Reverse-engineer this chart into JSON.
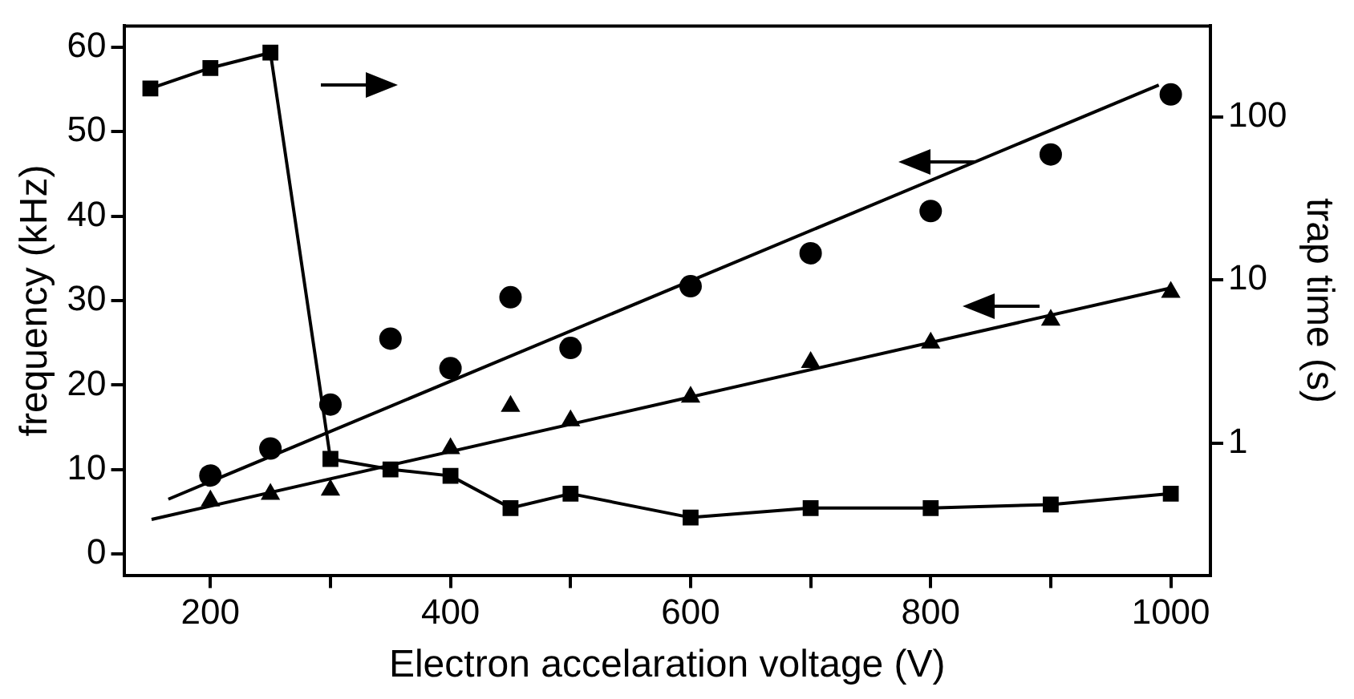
{
  "chart_data": {
    "type": "line",
    "xlabel": "Electron accelaration voltage (V)",
    "ylabel": "frequency (kHz)",
    "y2label": "trap time (s)",
    "x": [
      150,
      200,
      250,
      300,
      350,
      400,
      450,
      500,
      600,
      700,
      800,
      900,
      1000
    ],
    "xlim": [
      128,
      1033
    ],
    "xticks": [
      200,
      {
        "value": 300,
        "label": null
      },
      400,
      {
        "value": 500,
        "label": null
      },
      600,
      {
        "value": 700,
        "label": null
      },
      800,
      {
        "value": 900,
        "label": null
      },
      1000
    ],
    "ylim": [
      -2.5,
      62.5
    ],
    "yticks": [
      0,
      10,
      20,
      30,
      40,
      50,
      60
    ],
    "y2lim": [
      0.155,
      360
    ],
    "y2ticks": [
      1,
      10,
      100
    ],
    "log": "y2",
    "grid": false,
    "legend": false,
    "series": [
      {
        "type": "line",
        "axis": "y2",
        "marker": "square",
        "line_style": "solid",
        "color": "#000000",
        "values": [
          149,
          199,
          247,
          0.8,
          0.69,
          0.63,
          0.4,
          0.49,
          0.35,
          0.4,
          0.4,
          0.42,
          0.49
        ]
      },
      {
        "type": "scatter",
        "marker": "circle",
        "color": "#000000",
        "values": [
          null,
          9.3,
          12.5,
          17.7,
          25.5,
          22,
          30.4,
          24.4,
          31.7,
          35.6,
          40.6,
          47.3,
          54.4
        ]
      },
      {
        "type": "scatter",
        "marker": "triangle",
        "color": "#000000",
        "values": [
          null,
          6.3,
          7.1,
          7.6,
          null,
          12.5,
          17.5,
          15.8,
          18.6,
          22.7,
          25,
          27.7,
          31
        ]
      },
      {
        "type": "line",
        "marker": "none",
        "line_style": "solid",
        "color": "#000000",
        "x": [
          165,
          990
        ],
        "values": [
          6.5,
          55.5
        ]
      },
      {
        "type": "line",
        "marker": "none",
        "line_style": "solid",
        "color": "#000000",
        "x": [
          151,
          1000
        ],
        "values": [
          4.1,
          31.5
        ]
      }
    ]
  }
}
